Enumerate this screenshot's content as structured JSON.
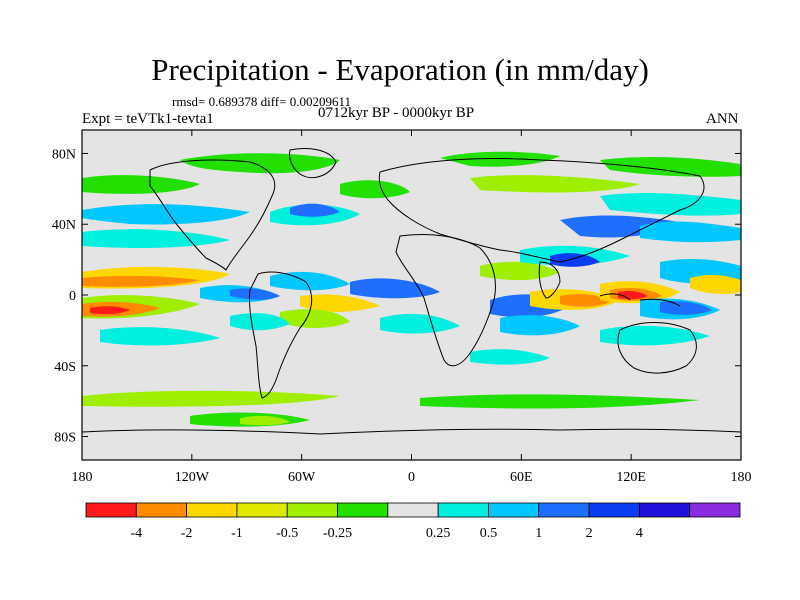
{
  "title": "Precipitation - Evaporation (in mm/day)",
  "stats": "rmsd= 0.689378 diff= 0.00209611",
  "expt": "Expt = teVTk1-tevta1",
  "period": "0712kyr BP - 0000kyr BP",
  "season": "ANN",
  "lat_axis": {
    "ticks": [
      {
        "label": "80N",
        "value": 80
      },
      {
        "label": "40N",
        "value": 40
      },
      {
        "label": "0",
        "value": 0
      },
      {
        "label": "40S",
        "value": -40
      },
      {
        "label": "80S",
        "value": -80
      }
    ]
  },
  "lon_axis": {
    "ticks": [
      {
        "label": "180",
        "value": -180
      },
      {
        "label": "120W",
        "value": -120
      },
      {
        "label": "60W",
        "value": -60
      },
      {
        "label": "0",
        "value": 0
      },
      {
        "label": "60E",
        "value": 60
      },
      {
        "label": "120E",
        "value": 120
      },
      {
        "label": "180",
        "value": 180
      }
    ]
  },
  "colorbar": {
    "colors": [
      "#ff1a1a",
      "#ff8c00",
      "#ffd700",
      "#dfe800",
      "#9ef000",
      "#22e000",
      "#e4e4e4",
      "#00f0e0",
      "#00c8ff",
      "#1e6eff",
      "#0a3cf0",
      "#2010d8",
      "#8a2be2"
    ],
    "labels": [
      "-4",
      "-2",
      "-1",
      "-0.5",
      "-0.25",
      "0.25",
      "0.5",
      "1",
      "2",
      "4"
    ]
  }
}
